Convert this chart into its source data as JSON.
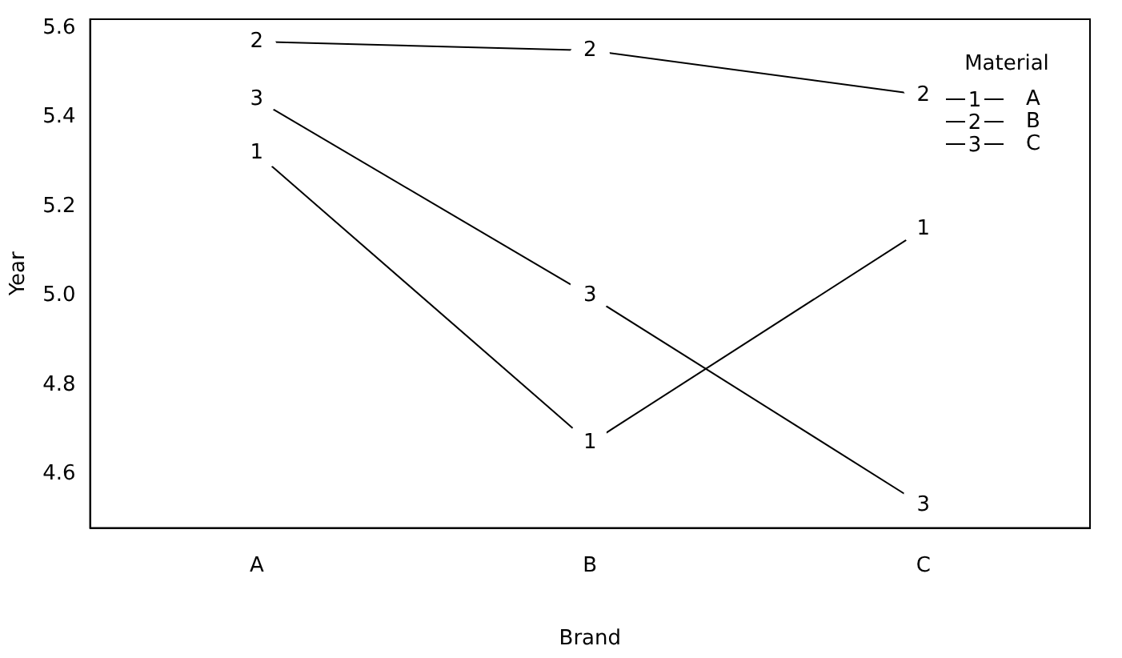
{
  "chart_data": {
    "type": "line",
    "xlabel": "Brand",
    "ylabel": "Year",
    "legend_title": "Material",
    "categories": [
      "A",
      "B",
      "C"
    ],
    "ylim": [
      4.48,
      5.62
    ],
    "yticks": [
      4.6,
      4.8,
      {
        "value": 5,
        "label": "5.0"
      },
      5.2,
      5.4,
      5.6
    ],
    "grid": false,
    "legend": "top right",
    "marker": "none",
    "line_style": "solid",
    "series": [
      {
        "name": "A",
        "color": "#000000",
        "values": [
          5.32,
          4.67,
          5.15
        ]
      },
      {
        "name": "B",
        "color": "#000000",
        "values": [
          5.57,
          5.55,
          5.45
        ]
      },
      {
        "name": "C",
        "color": "#000000",
        "values": [
          5.44,
          5.0,
          4.53
        ]
      }
    ],
    "annotations": [
      {
        "text": "1",
        "x": "A",
        "y": 5.32
      },
      {
        "text": "1",
        "x": "B",
        "y": 4.67
      },
      {
        "text": "1",
        "x": "C",
        "y": 5.15
      },
      {
        "text": "2",
        "x": "A",
        "y": 5.57
      },
      {
        "text": "2",
        "x": "B",
        "y": 5.55
      },
      {
        "text": "2",
        "x": "C",
        "y": 5.45
      },
      {
        "text": "3",
        "x": "A",
        "y": 5.44
      },
      {
        "text": "3",
        "x": "B",
        "y": 5.0
      },
      {
        "text": "3",
        "x": "C",
        "y": 4.53
      }
    ]
  }
}
